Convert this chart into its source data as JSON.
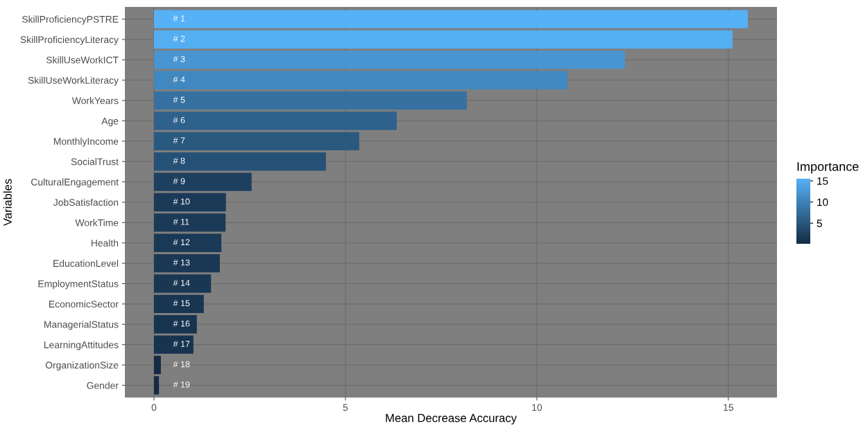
{
  "chart_data": {
    "type": "bar",
    "orientation": "horizontal",
    "xlabel": "Mean Decrease Accuracy",
    "ylabel": "Variables",
    "clabel": "Importance",
    "categories": [
      "SkillProficiencyPSTRE",
      "SkillProficiencyLiteracy",
      "SkillUseWorkICT",
      "SkillUseWorkLiteracy",
      "WorkYears",
      "Age",
      "MonthlyIncome",
      "SocialTrust",
      "CulturalEngagement",
      "JobSatisfaction",
      "WorkTime",
      "Health",
      "EducationLevel",
      "EmploymentStatus",
      "EconomicSector",
      "ManagerialStatus",
      "LearningAttitudes",
      "OrganizationSize",
      "Gender"
    ],
    "values": [
      15.51,
      15.11,
      12.3,
      10.8,
      8.17,
      6.34,
      5.36,
      4.49,
      2.55,
      1.88,
      1.87,
      1.76,
      1.72,
      1.49,
      1.3,
      1.12,
      1.03,
      0.18,
      0.13
    ],
    "colors": [
      "#56b1f7",
      "#54aef2",
      "#4895d1",
      "#4188c0",
      "#3671a1",
      "#2e618c",
      "#2a5980",
      "#265176",
      "#1e405f",
      "#1b3a58",
      "#1b3a57",
      "#1a3956",
      "#1a3855",
      "#193753",
      "#183551",
      "#17344f",
      "#17334e",
      "#132b43",
      "#132b43"
    ],
    "annotations": [
      "# 1",
      "# 2",
      "# 3",
      "# 4",
      "# 5",
      "# 6",
      "# 7",
      "# 8",
      "# 9",
      "# 10",
      "# 11",
      "# 12",
      "# 13",
      "# 14",
      "# 15",
      "# 16",
      "# 17",
      "# 18",
      "# 19"
    ],
    "xlim": [
      -0.76,
      16.27
    ],
    "xticks": [
      0,
      5,
      10,
      15
    ],
    "grid": true,
    "clim": [
      0.13,
      15.51
    ],
    "cticks": [
      5,
      10,
      15
    ]
  }
}
